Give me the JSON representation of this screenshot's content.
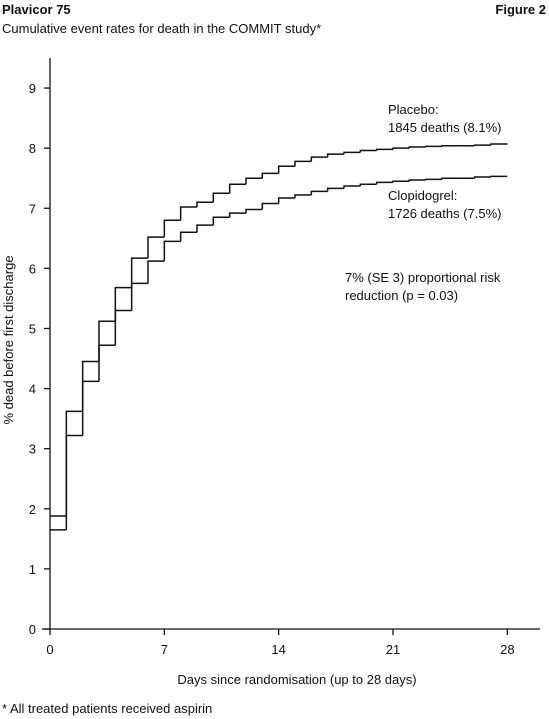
{
  "header": {
    "title": "Plavicor 75",
    "figure": "Figure 2",
    "footnote": "* All treated patients received aspirin"
  },
  "chart_data": {
    "type": "step",
    "title": "Cumulative event rates for death in the COMMIT study*",
    "x_label": "Days since randomisation (up to 28 days)",
    "y_label": "% dead before first discharge",
    "x": [
      0,
      1,
      2,
      3,
      4,
      5,
      6,
      7,
      8,
      9,
      10,
      11,
      12,
      13,
      14,
      15,
      16,
      17,
      18,
      19,
      20,
      21,
      22,
      23,
      24,
      25,
      26,
      27
    ],
    "series": [
      {
        "name": "Placebo",
        "color": "#111111",
        "values": [
          1.88,
          3.62,
          4.45,
          5.12,
          5.68,
          6.17,
          6.52,
          6.8,
          7.02,
          7.1,
          7.25,
          7.4,
          7.5,
          7.58,
          7.7,
          7.78,
          7.85,
          7.9,
          7.93,
          7.96,
          7.98,
          8.0,
          8.02,
          8.03,
          8.04,
          8.04,
          8.05,
          8.07
        ]
      },
      {
        "name": "Clopidogrel",
        "color": "#111111",
        "values": [
          1.65,
          3.22,
          4.12,
          4.72,
          5.3,
          5.75,
          6.12,
          6.45,
          6.6,
          6.72,
          6.85,
          6.92,
          6.98,
          7.08,
          7.17,
          7.22,
          7.28,
          7.33,
          7.37,
          7.4,
          7.43,
          7.45,
          7.47,
          7.48,
          7.5,
          7.5,
          7.52,
          7.53
        ]
      }
    ],
    "annotations": [
      {
        "lines": [
          "Placebo:",
          "1845 deaths (8.1%)"
        ]
      },
      {
        "lines": [
          "Clopidogrel:",
          "1726 deaths (7.5%)"
        ]
      },
      {
        "lines": [
          "7% (SE 3) proportional risk",
          "reduction (p = 0.03)"
        ]
      }
    ],
    "xlim": [
      0,
      30
    ],
    "xticks": [
      0,
      7,
      14,
      21,
      28
    ],
    "ylim": [
      0,
      9.5
    ],
    "yticks": [
      0,
      1,
      2,
      3,
      4,
      5,
      6,
      7,
      8,
      9
    ]
  }
}
